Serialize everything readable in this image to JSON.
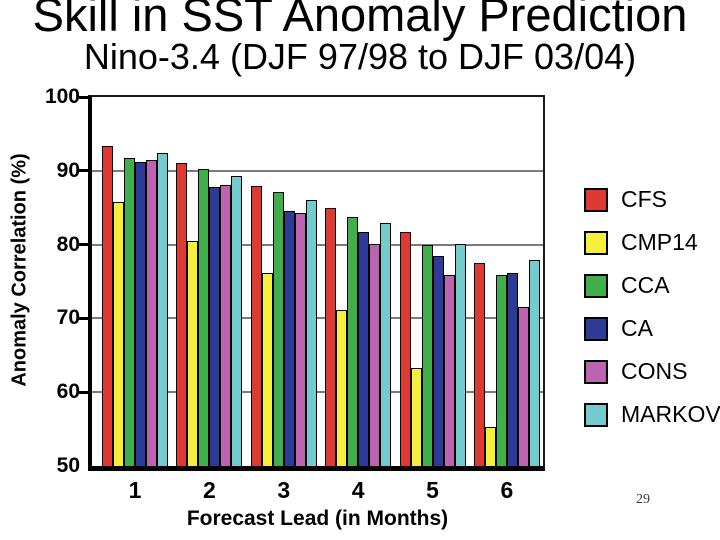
{
  "title": "Skill in SST Anomaly Prediction",
  "subtitle": "Nino-3.4 (DJF 97/98 to DJF 03/04)",
  "page_number": "29",
  "chart_data": {
    "type": "bar",
    "title": "Skill in SST Anomaly Prediction",
    "subtitle": "Nino-3.4 (DJF 97/98 to DJF 03/04)",
    "xlabel": "Forecast Lead (in Months)",
    "ylabel": "Anomaly Correlation (%)",
    "categories": [
      "1",
      "2",
      "3",
      "4",
      "5",
      "6"
    ],
    "ylim": [
      50,
      100
    ],
    "yticks": [
      50,
      60,
      70,
      80,
      90,
      100
    ],
    "grid": "horizontal-gray",
    "legend_position": "right",
    "series": [
      {
        "name": "CFS",
        "color": "#dc3a32",
        "values": [
          93.4,
          91.0,
          87.9,
          85.0,
          81.7,
          77.5
        ]
      },
      {
        "name": "CMP14",
        "color": "#f5ee3b",
        "values": [
          85.8,
          80.5,
          76.2,
          71.2,
          63.3,
          55.3
        ]
      },
      {
        "name": "CCA",
        "color": "#3fae4b",
        "values": [
          91.7,
          90.2,
          87.1,
          83.7,
          79.9,
          75.9
        ]
      },
      {
        "name": "CA",
        "color": "#2e3a98",
        "values": [
          91.2,
          87.8,
          84.6,
          81.7,
          78.4,
          76.1
        ]
      },
      {
        "name": "CONS",
        "color": "#bd64b0",
        "values": [
          91.4,
          88.1,
          84.3,
          80.1,
          75.9,
          71.6
        ]
      },
      {
        "name": "MARKOV",
        "color": "#74cbcd",
        "values": [
          92.4,
          89.3,
          86.0,
          82.9,
          80.1,
          77.9
        ]
      }
    ]
  }
}
